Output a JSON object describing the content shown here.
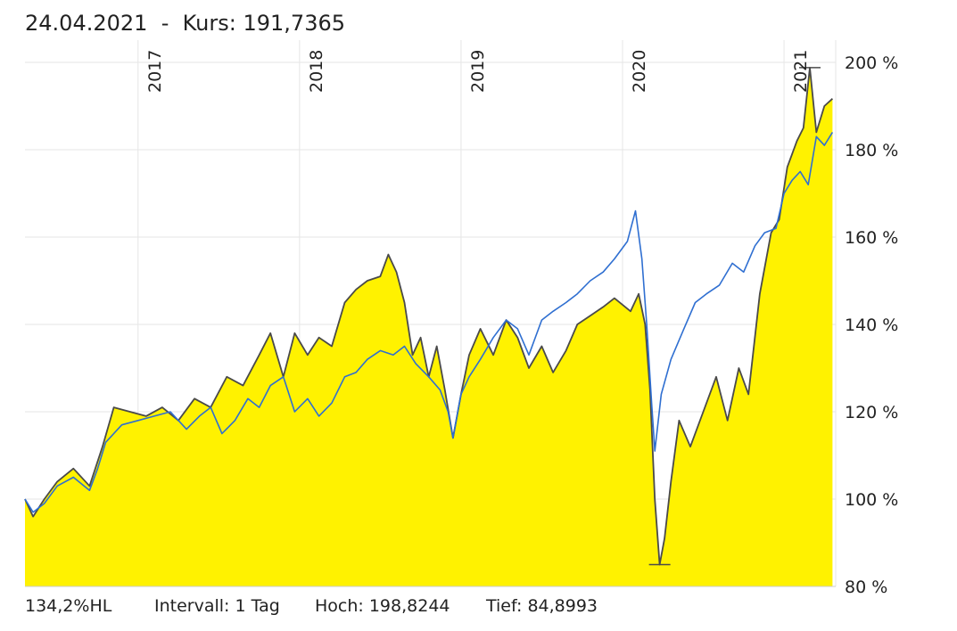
{
  "header": {
    "date": "24.04.2021",
    "separator": "-",
    "price_label": "Kurs:",
    "price_value": "191,7365"
  },
  "footer": {
    "change": "134,2%HL",
    "interval": "Intervall: 1 Tag",
    "high": "Hoch: 198,8244",
    "low": "Tief: 84,8993"
  },
  "colors": {
    "area_fill": "#fff200",
    "main_line": "#4a4a4a",
    "compare_line": "#2f6fd1",
    "grid": "#e6e6e6"
  },
  "chart_data": {
    "type": "area",
    "y_tick_labels": [
      "80 %",
      "100 %",
      "120 %",
      "140 %",
      "160 %",
      "180 %",
      "200 %"
    ],
    "y_ticks": [
      80,
      100,
      120,
      140,
      160,
      180,
      200
    ],
    "ylim": [
      80,
      200
    ],
    "xlim": [
      2016.3,
      2021.32
    ],
    "x_tick_labels": [
      "2017",
      "2018",
      "2019",
      "2020",
      "2021"
    ],
    "x_ticks": [
      2017,
      2018,
      2019,
      2020,
      2021
    ],
    "grid": true,
    "series": [
      {
        "role": "main",
        "style": "area-line",
        "points": [
          [
            2016.3,
            100
          ],
          [
            2016.35,
            96
          ],
          [
            2016.42,
            100
          ],
          [
            2016.5,
            104
          ],
          [
            2016.6,
            107
          ],
          [
            2016.7,
            103
          ],
          [
            2016.78,
            112
          ],
          [
            2016.85,
            121
          ],
          [
            2016.95,
            120
          ],
          [
            2017.05,
            119
          ],
          [
            2017.15,
            121
          ],
          [
            2017.25,
            118
          ],
          [
            2017.35,
            123
          ],
          [
            2017.45,
            121
          ],
          [
            2017.55,
            128
          ],
          [
            2017.65,
            126
          ],
          [
            2017.75,
            133
          ],
          [
            2017.82,
            138
          ],
          [
            2017.9,
            128
          ],
          [
            2017.97,
            138
          ],
          [
            2018.05,
            133
          ],
          [
            2018.12,
            137
          ],
          [
            2018.2,
            135
          ],
          [
            2018.28,
            145
          ],
          [
            2018.35,
            148
          ],
          [
            2018.42,
            150
          ],
          [
            2018.5,
            151
          ],
          [
            2018.55,
            156
          ],
          [
            2018.6,
            152
          ],
          [
            2018.65,
            145
          ],
          [
            2018.7,
            133
          ],
          [
            2018.75,
            137
          ],
          [
            2018.8,
            128
          ],
          [
            2018.85,
            135
          ],
          [
            2018.9,
            125
          ],
          [
            2018.95,
            114
          ],
          [
            2019.0,
            124
          ],
          [
            2019.05,
            133
          ],
          [
            2019.12,
            139
          ],
          [
            2019.2,
            133
          ],
          [
            2019.28,
            141
          ],
          [
            2019.35,
            137
          ],
          [
            2019.42,
            130
          ],
          [
            2019.5,
            135
          ],
          [
            2019.57,
            129
          ],
          [
            2019.65,
            134
          ],
          [
            2019.72,
            140
          ],
          [
            2019.8,
            142
          ],
          [
            2019.88,
            144
          ],
          [
            2019.95,
            146
          ],
          [
            2020.05,
            143
          ],
          [
            2020.1,
            147
          ],
          [
            2020.14,
            140
          ],
          [
            2020.17,
            125
          ],
          [
            2020.2,
            100
          ],
          [
            2020.23,
            85
          ],
          [
            2020.26,
            91
          ],
          [
            2020.3,
            104
          ],
          [
            2020.35,
            118
          ],
          [
            2020.42,
            112
          ],
          [
            2020.5,
            120
          ],
          [
            2020.58,
            128
          ],
          [
            2020.65,
            118
          ],
          [
            2020.72,
            130
          ],
          [
            2020.78,
            124
          ],
          [
            2020.85,
            147
          ],
          [
            2020.92,
            161
          ],
          [
            2020.97,
            164
          ],
          [
            2021.02,
            176
          ],
          [
            2021.08,
            182
          ],
          [
            2021.12,
            185
          ],
          [
            2021.16,
            198.8
          ],
          [
            2021.2,
            184
          ],
          [
            2021.25,
            190
          ],
          [
            2021.3,
            191.7
          ]
        ]
      },
      {
        "role": "comparison",
        "style": "line",
        "points": [
          [
            2016.3,
            100
          ],
          [
            2016.35,
            97
          ],
          [
            2016.42,
            99
          ],
          [
            2016.5,
            103
          ],
          [
            2016.6,
            105
          ],
          [
            2016.7,
            102
          ],
          [
            2016.75,
            107
          ],
          [
            2016.8,
            113
          ],
          [
            2016.9,
            117
          ],
          [
            2017.0,
            118
          ],
          [
            2017.1,
            119
          ],
          [
            2017.2,
            120
          ],
          [
            2017.3,
            116
          ],
          [
            2017.38,
            119
          ],
          [
            2017.45,
            121
          ],
          [
            2017.52,
            115
          ],
          [
            2017.6,
            118
          ],
          [
            2017.68,
            123
          ],
          [
            2017.75,
            121
          ],
          [
            2017.82,
            126
          ],
          [
            2017.9,
            128
          ],
          [
            2017.97,
            120
          ],
          [
            2018.05,
            123
          ],
          [
            2018.12,
            119
          ],
          [
            2018.2,
            122
          ],
          [
            2018.28,
            128
          ],
          [
            2018.35,
            129
          ],
          [
            2018.42,
            132
          ],
          [
            2018.5,
            134
          ],
          [
            2018.58,
            133
          ],
          [
            2018.65,
            135
          ],
          [
            2018.72,
            131
          ],
          [
            2018.8,
            128
          ],
          [
            2018.87,
            125
          ],
          [
            2018.92,
            120
          ],
          [
            2018.95,
            114
          ],
          [
            2019.0,
            124
          ],
          [
            2019.05,
            128
          ],
          [
            2019.12,
            132
          ],
          [
            2019.2,
            137
          ],
          [
            2019.28,
            141
          ],
          [
            2019.35,
            139
          ],
          [
            2019.42,
            133
          ],
          [
            2019.5,
            141
          ],
          [
            2019.57,
            143
          ],
          [
            2019.65,
            145
          ],
          [
            2019.72,
            147
          ],
          [
            2019.8,
            150
          ],
          [
            2019.88,
            152
          ],
          [
            2019.95,
            155
          ],
          [
            2020.03,
            159
          ],
          [
            2020.08,
            166
          ],
          [
            2020.12,
            155
          ],
          [
            2020.15,
            140
          ],
          [
            2020.18,
            122
          ],
          [
            2020.2,
            111
          ],
          [
            2020.24,
            124
          ],
          [
            2020.3,
            132
          ],
          [
            2020.38,
            139
          ],
          [
            2020.45,
            145
          ],
          [
            2020.52,
            147
          ],
          [
            2020.6,
            149
          ],
          [
            2020.68,
            154
          ],
          [
            2020.75,
            152
          ],
          [
            2020.82,
            158
          ],
          [
            2020.88,
            161
          ],
          [
            2020.95,
            162
          ],
          [
            2021.0,
            170
          ],
          [
            2021.05,
            173
          ],
          [
            2021.1,
            175
          ],
          [
            2021.15,
            172
          ],
          [
            2021.2,
            183
          ],
          [
            2021.25,
            181
          ],
          [
            2021.3,
            184
          ]
        ]
      }
    ],
    "annotations": [
      "high marker",
      "low marker"
    ]
  }
}
